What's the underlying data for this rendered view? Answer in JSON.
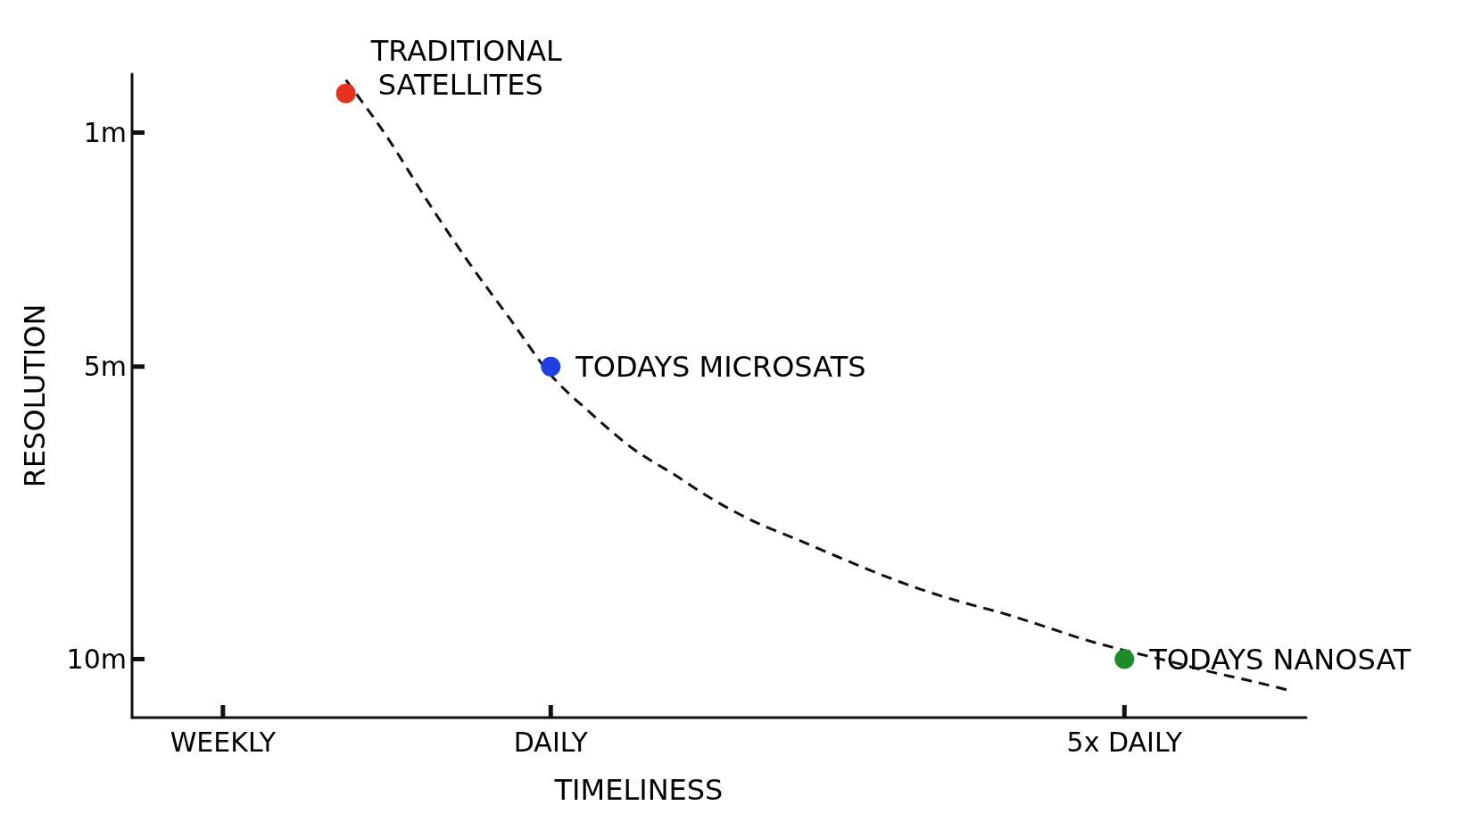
{
  "chart_data": {
    "type": "scatter",
    "xlabel": "TIMELINESS",
    "ylabel": "RESOLUTION",
    "categories": [
      null,
      null,
      "WEEKLY",
      null,
      null,
      null,
      null,
      null,
      null,
      null,
      "DAILY",
      null,
      null,
      null,
      null,
      null,
      null,
      null,
      null,
      null,
      null,
      null,
      null,
      null,
      "5x DAILY",
      null,
      null,
      null,
      null
    ],
    "ylim": [
      11,
      0
    ],
    "yticks": [
      {
        "value": 1,
        "label": "1m"
      },
      {
        "value": 5,
        "label": "5m"
      },
      {
        "value": 10,
        "label": "10m"
      }
    ],
    "series": [
      {
        "type": "line",
        "color": "#111111",
        "line_style": "dashed",
        "values": [
          null,
          null,
          null,
          null,
          null,
          0.1,
          1.07,
          2.18,
          3.22,
          4.18,
          5.14,
          5.81,
          6.4,
          6.84,
          7.29,
          7.66,
          7.95,
          8.25,
          8.54,
          8.8,
          9.02,
          9.21,
          9.43,
          9.66,
          9.85,
          10.02,
          10.2,
          10.36,
          10.53
        ]
      },
      {
        "color": "#e8321e",
        "marker": "circle",
        "values": [
          null,
          null,
          null,
          null,
          null,
          0.33,
          null,
          null,
          null,
          null,
          null,
          null,
          null,
          null,
          null,
          null,
          null,
          null,
          null,
          null,
          null,
          null,
          null,
          null,
          null,
          null,
          null,
          null,
          null
        ]
      },
      {
        "color": "#1f3fe0",
        "marker": "circle",
        "values": [
          null,
          null,
          null,
          null,
          null,
          null,
          null,
          null,
          null,
          null,
          5,
          null,
          null,
          null,
          null,
          null,
          null,
          null,
          null,
          null,
          null,
          null,
          null,
          null,
          null,
          null,
          null,
          null,
          null
        ]
      },
      {
        "color": "#1e8a2a",
        "marker": "circle",
        "values": [
          null,
          null,
          null,
          null,
          null,
          null,
          null,
          null,
          null,
          null,
          null,
          null,
          null,
          null,
          null,
          null,
          null,
          null,
          null,
          null,
          null,
          null,
          null,
          null,
          10,
          null,
          null,
          null,
          null
        ]
      }
    ],
    "annotations": [
      "TRADITIONAL\nSATELLITES",
      "TODAYS MICROSATS",
      "TODAYS NANOSAT"
    ]
  }
}
